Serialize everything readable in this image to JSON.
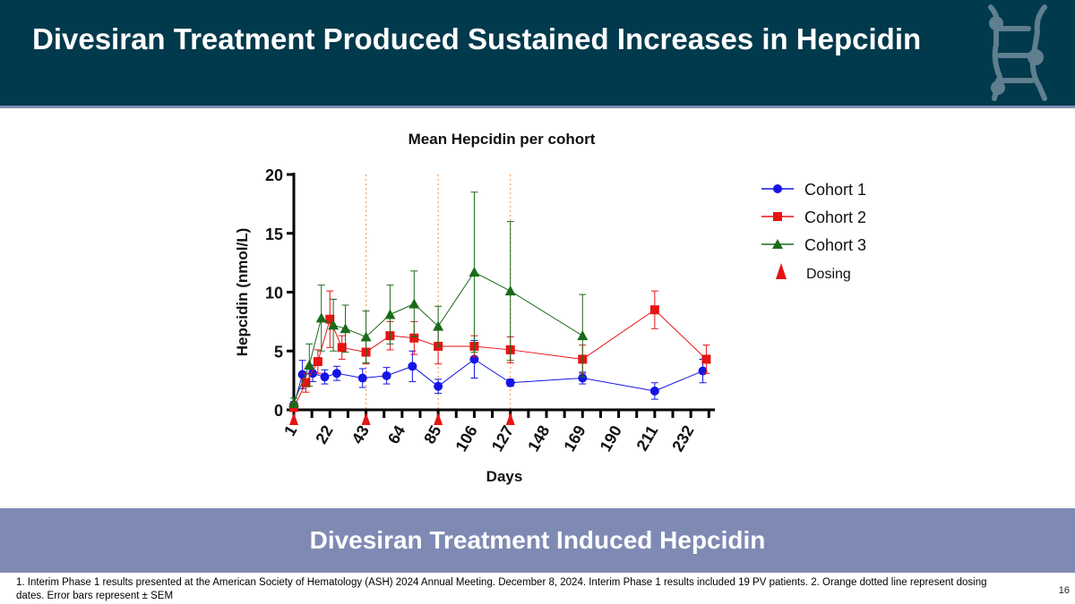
{
  "header": {
    "title": "Divesiran Treatment Produced Sustained Increases in Hepcidin",
    "logo_icon": "company-logo-icon"
  },
  "colors": {
    "header_bg": "#013a4c",
    "banner_bg": "#7f8ab4",
    "cohort1": "#1414e6",
    "cohort2": "#e61414",
    "cohort3": "#1a6b1a",
    "dosing": "#e61414",
    "dosing_line": "#f0a060"
  },
  "chart_data": {
    "type": "line",
    "title": "Mean Hepcidin per cohort",
    "xlabel": "Days",
    "ylabel": "Hepcidin (nmol/L)",
    "xlim": [
      1,
      246
    ],
    "ylim": [
      0,
      20
    ],
    "x_ticks": [
      1,
      22,
      43,
      64,
      85,
      106,
      127,
      148,
      169,
      190,
      211,
      232
    ],
    "x_minor_ticks": [
      11.5,
      32.5,
      53.5,
      74.5,
      95.5,
      116.5,
      137.5,
      158.5,
      179.5,
      200.5,
      221.5,
      242.5
    ],
    "y_ticks": [
      0,
      5,
      10,
      15,
      20
    ],
    "dosing_days": [
      1,
      43,
      85,
      127
    ],
    "legend_position": "right",
    "series": [
      {
        "name": "Cohort 1",
        "marker": "circle",
        "points": [
          {
            "x": 1,
            "y": 0.4,
            "err": 0.3
          },
          {
            "x": 6,
            "y": 3.0,
            "err": 1.2
          },
          {
            "x": 12,
            "y": 3.1,
            "err": 0.7
          },
          {
            "x": 19,
            "y": 2.8,
            "err": 0.6
          },
          {
            "x": 26,
            "y": 3.1,
            "err": 0.6
          },
          {
            "x": 41,
            "y": 2.7,
            "err": 0.8
          },
          {
            "x": 55,
            "y": 2.9,
            "err": 0.7
          },
          {
            "x": 70,
            "y": 3.7,
            "err": 1.3
          },
          {
            "x": 85,
            "y": 2.0,
            "err": 0.6
          },
          {
            "x": 106,
            "y": 4.3,
            "err": 1.6
          },
          {
            "x": 127,
            "y": 2.3,
            "err": 0.3
          },
          {
            "x": 169,
            "y": 2.7,
            "err": 0.5
          },
          {
            "x": 211,
            "y": 1.6,
            "err": 0.7
          },
          {
            "x": 239,
            "y": 3.3,
            "err": 1.0
          }
        ]
      },
      {
        "name": "Cohort 2",
        "marker": "square",
        "points": [
          {
            "x": 1,
            "y": 0.2,
            "err": 0.2
          },
          {
            "x": 8,
            "y": 2.3,
            "err": 0.8
          },
          {
            "x": 15,
            "y": 4.1,
            "err": 1.0
          },
          {
            "x": 22,
            "y": 7.7,
            "err": 2.4
          },
          {
            "x": 29,
            "y": 5.3,
            "err": 1.0
          },
          {
            "x": 43,
            "y": 4.9,
            "err": 1.0
          },
          {
            "x": 57,
            "y": 6.3,
            "err": 1.2
          },
          {
            "x": 71,
            "y": 6.1,
            "err": 1.4
          },
          {
            "x": 85,
            "y": 5.4,
            "err": 1.5
          },
          {
            "x": 106,
            "y": 5.4,
            "err": 0.9
          },
          {
            "x": 127,
            "y": 5.1,
            "err": 1.1
          },
          {
            "x": 169,
            "y": 4.3,
            "err": 1.2
          },
          {
            "x": 211,
            "y": 8.5,
            "err": 1.6
          },
          {
            "x": 241,
            "y": 4.3,
            "err": 1.2
          }
        ]
      },
      {
        "name": "Cohort 3",
        "marker": "triangle",
        "points": [
          {
            "x": 1,
            "y": 0.6,
            "err": 0.4
          },
          {
            "x": 10,
            "y": 3.8,
            "err": 1.8
          },
          {
            "x": 17,
            "y": 7.8,
            "err": 2.8
          },
          {
            "x": 24,
            "y": 7.2,
            "err": 2.2
          },
          {
            "x": 31,
            "y": 6.9,
            "err": 2.0
          },
          {
            "x": 43,
            "y": 6.2,
            "err": 2.2
          },
          {
            "x": 57,
            "y": 8.1,
            "err": 2.5
          },
          {
            "x": 71,
            "y": 9.0,
            "err": 2.8
          },
          {
            "x": 85,
            "y": 7.1,
            "err": 1.7
          },
          {
            "x": 106,
            "y": 11.7,
            "err": 6.8
          },
          {
            "x": 127,
            "y": 10.1,
            "err": 5.9
          },
          {
            "x": 169,
            "y": 6.3,
            "err": 3.5
          }
        ]
      }
    ],
    "legend": [
      {
        "label": "Cohort 1",
        "marker": "circle"
      },
      {
        "label": "Cohort 2",
        "marker": "square"
      },
      {
        "label": "Cohort 3",
        "marker": "triangle"
      },
      {
        "label": "Dosing",
        "marker": "dosing-triangle"
      }
    ]
  },
  "banner": {
    "text": "Divesiran Treatment Induced Hepcidin"
  },
  "footnote": {
    "text": "1. Interim Phase 1 results presented at the American Society of Hematology (ASH) 2024 Annual Meeting. December 8, 2024. Interim Phase 1 results included 19 PV patients. 2. Orange dotted line represent dosing dates. Error bars represent ± SEM"
  },
  "page_number": "16"
}
